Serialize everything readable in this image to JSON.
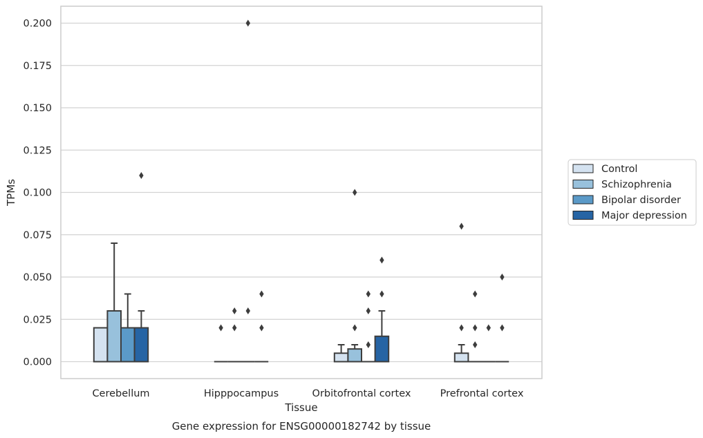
{
  "chart_data": {
    "type": "box",
    "title": "",
    "xlabel": "Tissue",
    "ylabel": "TPMs",
    "caption": "Gene expression for ENSG00000182742 by tissue",
    "ylim": [
      -0.01,
      0.21
    ],
    "yticks": [
      0.0,
      0.025,
      0.05,
      0.075,
      0.1,
      0.125,
      0.15,
      0.175,
      0.2
    ],
    "ytick_labels": [
      "0.000",
      "0.025",
      "0.050",
      "0.075",
      "0.100",
      "0.125",
      "0.150",
      "0.175",
      "0.200"
    ],
    "grid": "horizontal",
    "legend_position": "right",
    "categories": [
      "Cerebellum",
      "Hipppocampus",
      "Orbitofrontal cortex",
      "Prefrontal cortex"
    ],
    "series": [
      {
        "name": "Control",
        "color": "#d4e2f0",
        "boxes": [
          {
            "q1": 0,
            "median": 0,
            "q3": 0.02,
            "whisker_low": 0,
            "whisker_high": 0.02,
            "outliers": []
          },
          {
            "q1": 0,
            "median": 0,
            "q3": 0,
            "whisker_low": 0,
            "whisker_high": 0,
            "outliers": [
              0.02
            ]
          },
          {
            "q1": 0,
            "median": 0,
            "q3": 0.005,
            "whisker_low": 0,
            "whisker_high": 0.01,
            "outliers": []
          },
          {
            "q1": 0,
            "median": 0,
            "q3": 0.005,
            "whisker_low": 0,
            "whisker_high": 0.01,
            "outliers": [
              0.02,
              0.08
            ]
          }
        ]
      },
      {
        "name": "Schizophrenia",
        "color": "#98c1dc",
        "boxes": [
          {
            "q1": 0,
            "median": 0,
            "q3": 0.03,
            "whisker_low": 0,
            "whisker_high": 0.07,
            "outliers": []
          },
          {
            "q1": 0,
            "median": 0,
            "q3": 0,
            "whisker_low": 0,
            "whisker_high": 0,
            "outliers": [
              0.02,
              0.03
            ]
          },
          {
            "q1": 0,
            "median": 0,
            "q3": 0.0075,
            "whisker_low": 0,
            "whisker_high": 0.01,
            "outliers": [
              0.02,
              0.1
            ]
          },
          {
            "q1": 0,
            "median": 0,
            "q3": 0,
            "whisker_low": 0,
            "whisker_high": 0,
            "outliers": [
              0.01,
              0.02,
              0.04
            ]
          }
        ]
      },
      {
        "name": "Bipolar disorder",
        "color": "#5b9ac8",
        "boxes": [
          {
            "q1": 0,
            "median": 0,
            "q3": 0.02,
            "whisker_low": 0,
            "whisker_high": 0.04,
            "outliers": []
          },
          {
            "q1": 0,
            "median": 0,
            "q3": 0,
            "whisker_low": 0,
            "whisker_high": 0,
            "outliers": [
              0.03,
              0.2
            ]
          },
          {
            "q1": 0,
            "median": 0,
            "q3": 0,
            "whisker_low": 0,
            "whisker_high": 0,
            "outliers": [
              0.01,
              0.03,
              0.04
            ]
          },
          {
            "q1": 0,
            "median": 0,
            "q3": 0,
            "whisker_low": 0,
            "whisker_high": 0,
            "outliers": [
              0.02
            ]
          }
        ]
      },
      {
        "name": "Major depression",
        "color": "#2664a4",
        "boxes": [
          {
            "q1": 0,
            "median": 0,
            "q3": 0.02,
            "whisker_low": 0,
            "whisker_high": 0.03,
            "outliers": [
              0.11
            ]
          },
          {
            "q1": 0,
            "median": 0,
            "q3": 0,
            "whisker_low": 0,
            "whisker_high": 0,
            "outliers": [
              0.02,
              0.04
            ]
          },
          {
            "q1": 0,
            "median": 0,
            "q3": 0.015,
            "whisker_low": 0,
            "whisker_high": 0.03,
            "outliers": [
              0.04,
              0.06
            ]
          },
          {
            "q1": 0,
            "median": 0,
            "q3": 0,
            "whisker_low": 0,
            "whisker_high": 0,
            "outliers": [
              0.02,
              0.05
            ]
          }
        ]
      }
    ]
  }
}
